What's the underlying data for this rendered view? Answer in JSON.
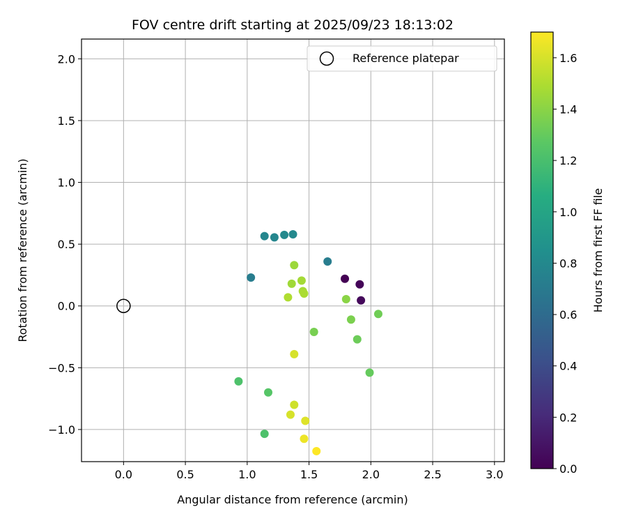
{
  "chart_data": {
    "type": "scatter",
    "title": "FOV centre drift starting at 2025/09/23 18:13:02",
    "xlabel": "Angular distance from reference (arcmin)",
    "ylabel": "Rotation from reference (arcmin)",
    "xlim": [
      -0.34,
      3.08
    ],
    "ylim": [
      -1.26,
      2.16
    ],
    "xticks": [
      0.0,
      0.5,
      1.0,
      1.5,
      2.0,
      2.5,
      3.0
    ],
    "xtick_labels": [
      "0.0",
      "0.5",
      "1.0",
      "1.5",
      "2.0",
      "2.5",
      "3.0"
    ],
    "yticks": [
      -1.0,
      -0.5,
      0.0,
      0.5,
      1.0,
      1.5,
      2.0
    ],
    "ytick_labels": [
      "−1.0",
      "−0.5",
      "0.0",
      "0.5",
      "1.0",
      "1.5",
      "2.0"
    ],
    "grid": true,
    "legend": {
      "position": "top-right",
      "entries": [
        "Reference platepar"
      ]
    },
    "reference_point": {
      "x": 0.0,
      "y": 0.0,
      "label": "Reference platepar"
    },
    "colorbar": {
      "label": "Hours from first FF file",
      "range": [
        0.0,
        1.7
      ],
      "ticks": [
        0.0,
        0.2,
        0.4,
        0.6,
        0.8,
        1.0,
        1.2,
        1.4,
        1.6
      ],
      "tick_labels": [
        "0.0",
        "0.2",
        "0.4",
        "0.6",
        "0.8",
        "1.0",
        "1.2",
        "1.4",
        "1.6"
      ],
      "colormap": "viridis"
    },
    "points": [
      {
        "x": 1.79,
        "y": 0.22,
        "hours": 0.0
      },
      {
        "x": 1.91,
        "y": 0.175,
        "hours": 0.02
      },
      {
        "x": 1.92,
        "y": 0.045,
        "hours": 0.04
      },
      {
        "x": 1.65,
        "y": 0.36,
        "hours": 0.72
      },
      {
        "x": 1.03,
        "y": 0.23,
        "hours": 0.72
      },
      {
        "x": 1.14,
        "y": 0.565,
        "hours": 0.78
      },
      {
        "x": 1.22,
        "y": 0.555,
        "hours": 0.78
      },
      {
        "x": 1.3,
        "y": 0.575,
        "hours": 0.8
      },
      {
        "x": 1.37,
        "y": 0.58,
        "hours": 0.8
      },
      {
        "x": 0.93,
        "y": -0.61,
        "hours": 1.22
      },
      {
        "x": 1.14,
        "y": -1.035,
        "hours": 1.22
      },
      {
        "x": 1.17,
        "y": -0.7,
        "hours": 1.25
      },
      {
        "x": 1.99,
        "y": -0.54,
        "hours": 1.3
      },
      {
        "x": 1.89,
        "y": -0.27,
        "hours": 1.32
      },
      {
        "x": 2.06,
        "y": -0.065,
        "hours": 1.33
      },
      {
        "x": 1.54,
        "y": -0.21,
        "hours": 1.35
      },
      {
        "x": 1.84,
        "y": -0.11,
        "hours": 1.36
      },
      {
        "x": 1.8,
        "y": 0.055,
        "hours": 1.4
      },
      {
        "x": 1.38,
        "y": 0.33,
        "hours": 1.45
      },
      {
        "x": 1.36,
        "y": 0.18,
        "hours": 1.46
      },
      {
        "x": 1.44,
        "y": 0.205,
        "hours": 1.47
      },
      {
        "x": 1.45,
        "y": 0.12,
        "hours": 1.48
      },
      {
        "x": 1.46,
        "y": 0.1,
        "hours": 1.49
      },
      {
        "x": 1.33,
        "y": 0.07,
        "hours": 1.5
      },
      {
        "x": 1.38,
        "y": -0.39,
        "hours": 1.6
      },
      {
        "x": 1.38,
        "y": -0.8,
        "hours": 1.58
      },
      {
        "x": 1.35,
        "y": -0.88,
        "hours": 1.6
      },
      {
        "x": 1.47,
        "y": -0.93,
        "hours": 1.62
      },
      {
        "x": 1.46,
        "y": -1.075,
        "hours": 1.66
      },
      {
        "x": 1.56,
        "y": -1.175,
        "hours": 1.7
      }
    ]
  }
}
